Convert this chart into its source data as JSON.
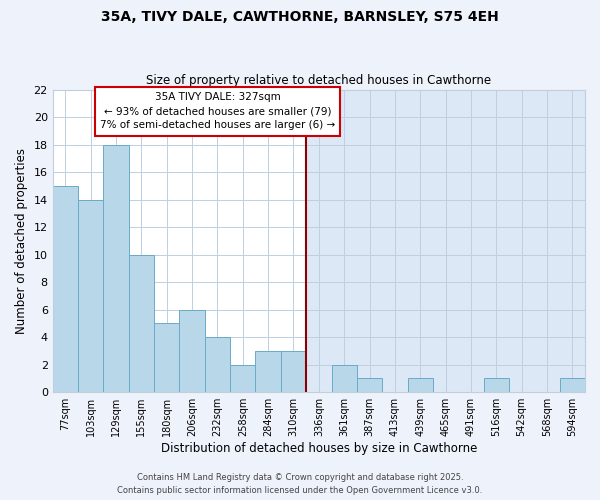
{
  "title": "35A, TIVY DALE, CAWTHORNE, BARNSLEY, S75 4EH",
  "subtitle": "Size of property relative to detached houses in Cawthorne",
  "xlabel": "Distribution of detached houses by size in Cawthorne",
  "ylabel": "Number of detached properties",
  "bin_labels": [
    "77sqm",
    "103sqm",
    "129sqm",
    "155sqm",
    "180sqm",
    "206sqm",
    "232sqm",
    "258sqm",
    "284sqm",
    "310sqm",
    "336sqm",
    "361sqm",
    "387sqm",
    "413sqm",
    "439sqm",
    "465sqm",
    "491sqm",
    "516sqm",
    "542sqm",
    "568sqm",
    "594sqm"
  ],
  "bar_values": [
    15,
    14,
    18,
    10,
    5,
    6,
    4,
    2,
    3,
    3,
    0,
    2,
    1,
    0,
    1,
    0,
    0,
    1,
    0,
    0,
    1
  ],
  "bar_color": "#b8d8ea",
  "bar_edge_color": "#6aaac8",
  "grid_color": "#c0cfe0",
  "background_color": "#eef2fa",
  "plot_bg_left": "#ffffff",
  "plot_bg_right": "#dce8f5",
  "vline_x_index": 10,
  "vline_color": "#8b0000",
  "annotation_title": "35A TIVY DALE: 327sqm",
  "annotation_line1": "← 93% of detached houses are smaller (79)",
  "annotation_line2": "7% of semi-detached houses are larger (6) →",
  "annotation_box_color": "#ffffff",
  "annotation_box_edge": "#cc0000",
  "ylim": [
    0,
    22
  ],
  "yticks": [
    0,
    2,
    4,
    6,
    8,
    10,
    12,
    14,
    16,
    18,
    20,
    22
  ],
  "footer1": "Contains HM Land Registry data © Crown copyright and database right 2025.",
  "footer2": "Contains public sector information licensed under the Open Government Licence v3.0."
}
